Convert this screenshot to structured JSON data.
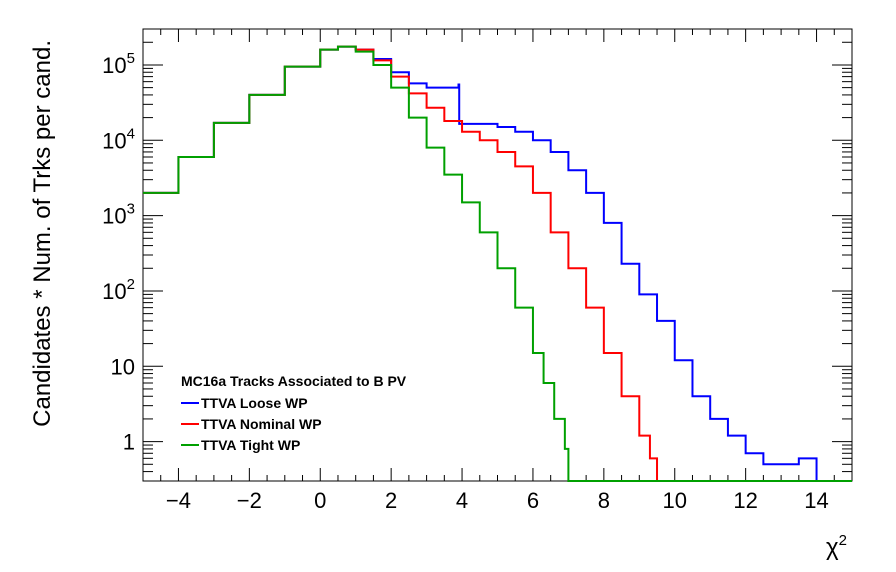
{
  "chart_data": {
    "type": "line",
    "style": "step-histogram",
    "xlabel": "χ",
    "xlabel_sup": "2",
    "ylabel": "Candidates * Num. of Trks per cand.",
    "xlim": [
      -5,
      15
    ],
    "ylim": [
      0.3,
      300000
    ],
    "yscale": "log",
    "grid": false,
    "legend_placement": "bottom-left",
    "legend_title": "MC16a Tracks Associated to B PV",
    "x_ticks": [
      -4,
      -2,
      0,
      2,
      4,
      6,
      8,
      10,
      12,
      14
    ],
    "x_tick_labels": [
      "−4",
      "−2",
      "0",
      "2",
      "4",
      "6",
      "8",
      "10",
      "12",
      "14"
    ],
    "y_ticks": [
      {
        "value": 1,
        "base": "1",
        "exp": ""
      },
      {
        "value": 10,
        "base": "10",
        "exp": ""
      },
      {
        "value": 100,
        "base": "10",
        "exp": "2"
      },
      {
        "value": 1000,
        "base": "10",
        "exp": "3"
      },
      {
        "value": 10000,
        "base": "10",
        "exp": "4"
      },
      {
        "value": 100000,
        "base": "10",
        "exp": "5"
      }
    ],
    "series": [
      {
        "name": "TTVA Loose WP",
        "color": "#0000ff",
        "x": [
          -5,
          -4,
          -3,
          -2,
          -1,
          0,
          0.5,
          1,
          1.5,
          2,
          2.5,
          3,
          3.5,
          3.9,
          3.92,
          4.5,
          5,
          5.5,
          6,
          6.5,
          7,
          7.5,
          8,
          8.5,
          9,
          9.5,
          10,
          10.5,
          11,
          11.5,
          12,
          12.5,
          13,
          13.5,
          14
        ],
        "y": [
          2000,
          6000,
          17000,
          40000,
          95000,
          160000,
          175000,
          160000,
          120000,
          80000,
          57000,
          50000,
          50000,
          55000,
          16500,
          16500,
          15000,
          13000,
          10000,
          7000,
          4000,
          2000,
          800,
          230,
          90,
          40,
          12,
          4,
          2,
          1.2,
          0.7,
          0.5,
          0.5,
          0.6,
          0.3
        ]
      },
      {
        "name": "TTVA Nominal WP",
        "color": "#ff0000",
        "x": [
          -5,
          -4,
          -3,
          -2,
          -1,
          0,
          0.5,
          1,
          1.5,
          2,
          2.5,
          3,
          3.5,
          4,
          4.5,
          5,
          5.5,
          6,
          6.5,
          7,
          7.5,
          8,
          8.5,
          9,
          9.3,
          9.5
        ],
        "y": [
          2000,
          6000,
          17000,
          40000,
          95000,
          160000,
          175000,
          160000,
          115000,
          70000,
          42000,
          27000,
          18000,
          13000,
          10000,
          7000,
          4500,
          2000,
          600,
          200,
          60,
          15,
          4,
          1.2,
          0.6,
          0.3
        ]
      },
      {
        "name": "TTVA Tight WP",
        "color": "#00a000",
        "x": [
          -5,
          -4,
          -3,
          -2,
          -1,
          0,
          0.5,
          1,
          1.5,
          2,
          2.5,
          3,
          3.5,
          4,
          4.5,
          5,
          5.5,
          6,
          6.3,
          6.6,
          6.9,
          7
        ],
        "y": [
          2000,
          6000,
          17000,
          40000,
          95000,
          160000,
          175000,
          150000,
          100000,
          50000,
          20000,
          8000,
          3500,
          1500,
          600,
          200,
          60,
          15,
          6,
          2,
          0.8,
          0.3
        ]
      }
    ]
  }
}
